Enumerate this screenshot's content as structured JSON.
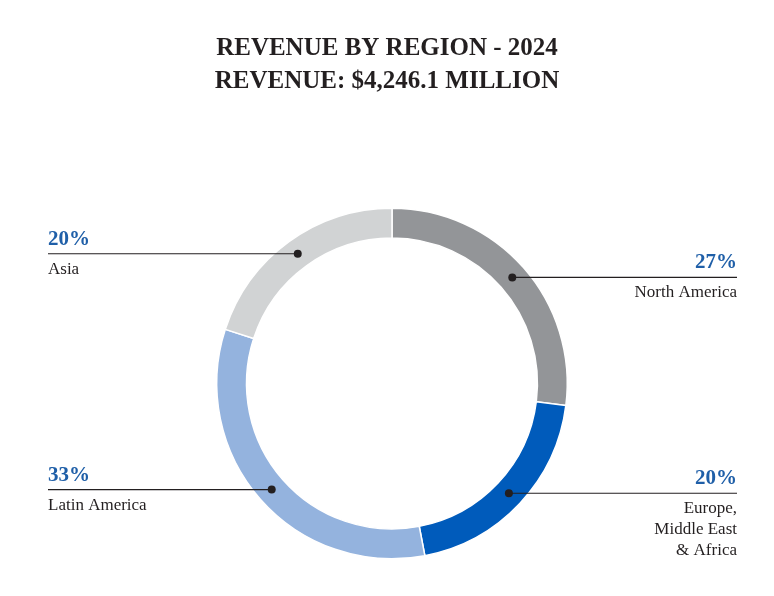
{
  "chart_data": {
    "type": "doughnut",
    "title": "REVENUE BY REGION - 2024",
    "subtitle": "REVENUE: $4,246.1 MILLION",
    "categories": [
      "North America",
      "Europe, Middle East & Africa",
      "Latin America",
      "Asia"
    ],
    "values": [
      27,
      20,
      33,
      20
    ],
    "value_labels": [
      "27%",
      "20%",
      "33%",
      "20%"
    ],
    "colors": [
      "#939598",
      "#005BBB",
      "#94B3DE",
      "#D1D3D4"
    ],
    "data_labels": true
  }
}
